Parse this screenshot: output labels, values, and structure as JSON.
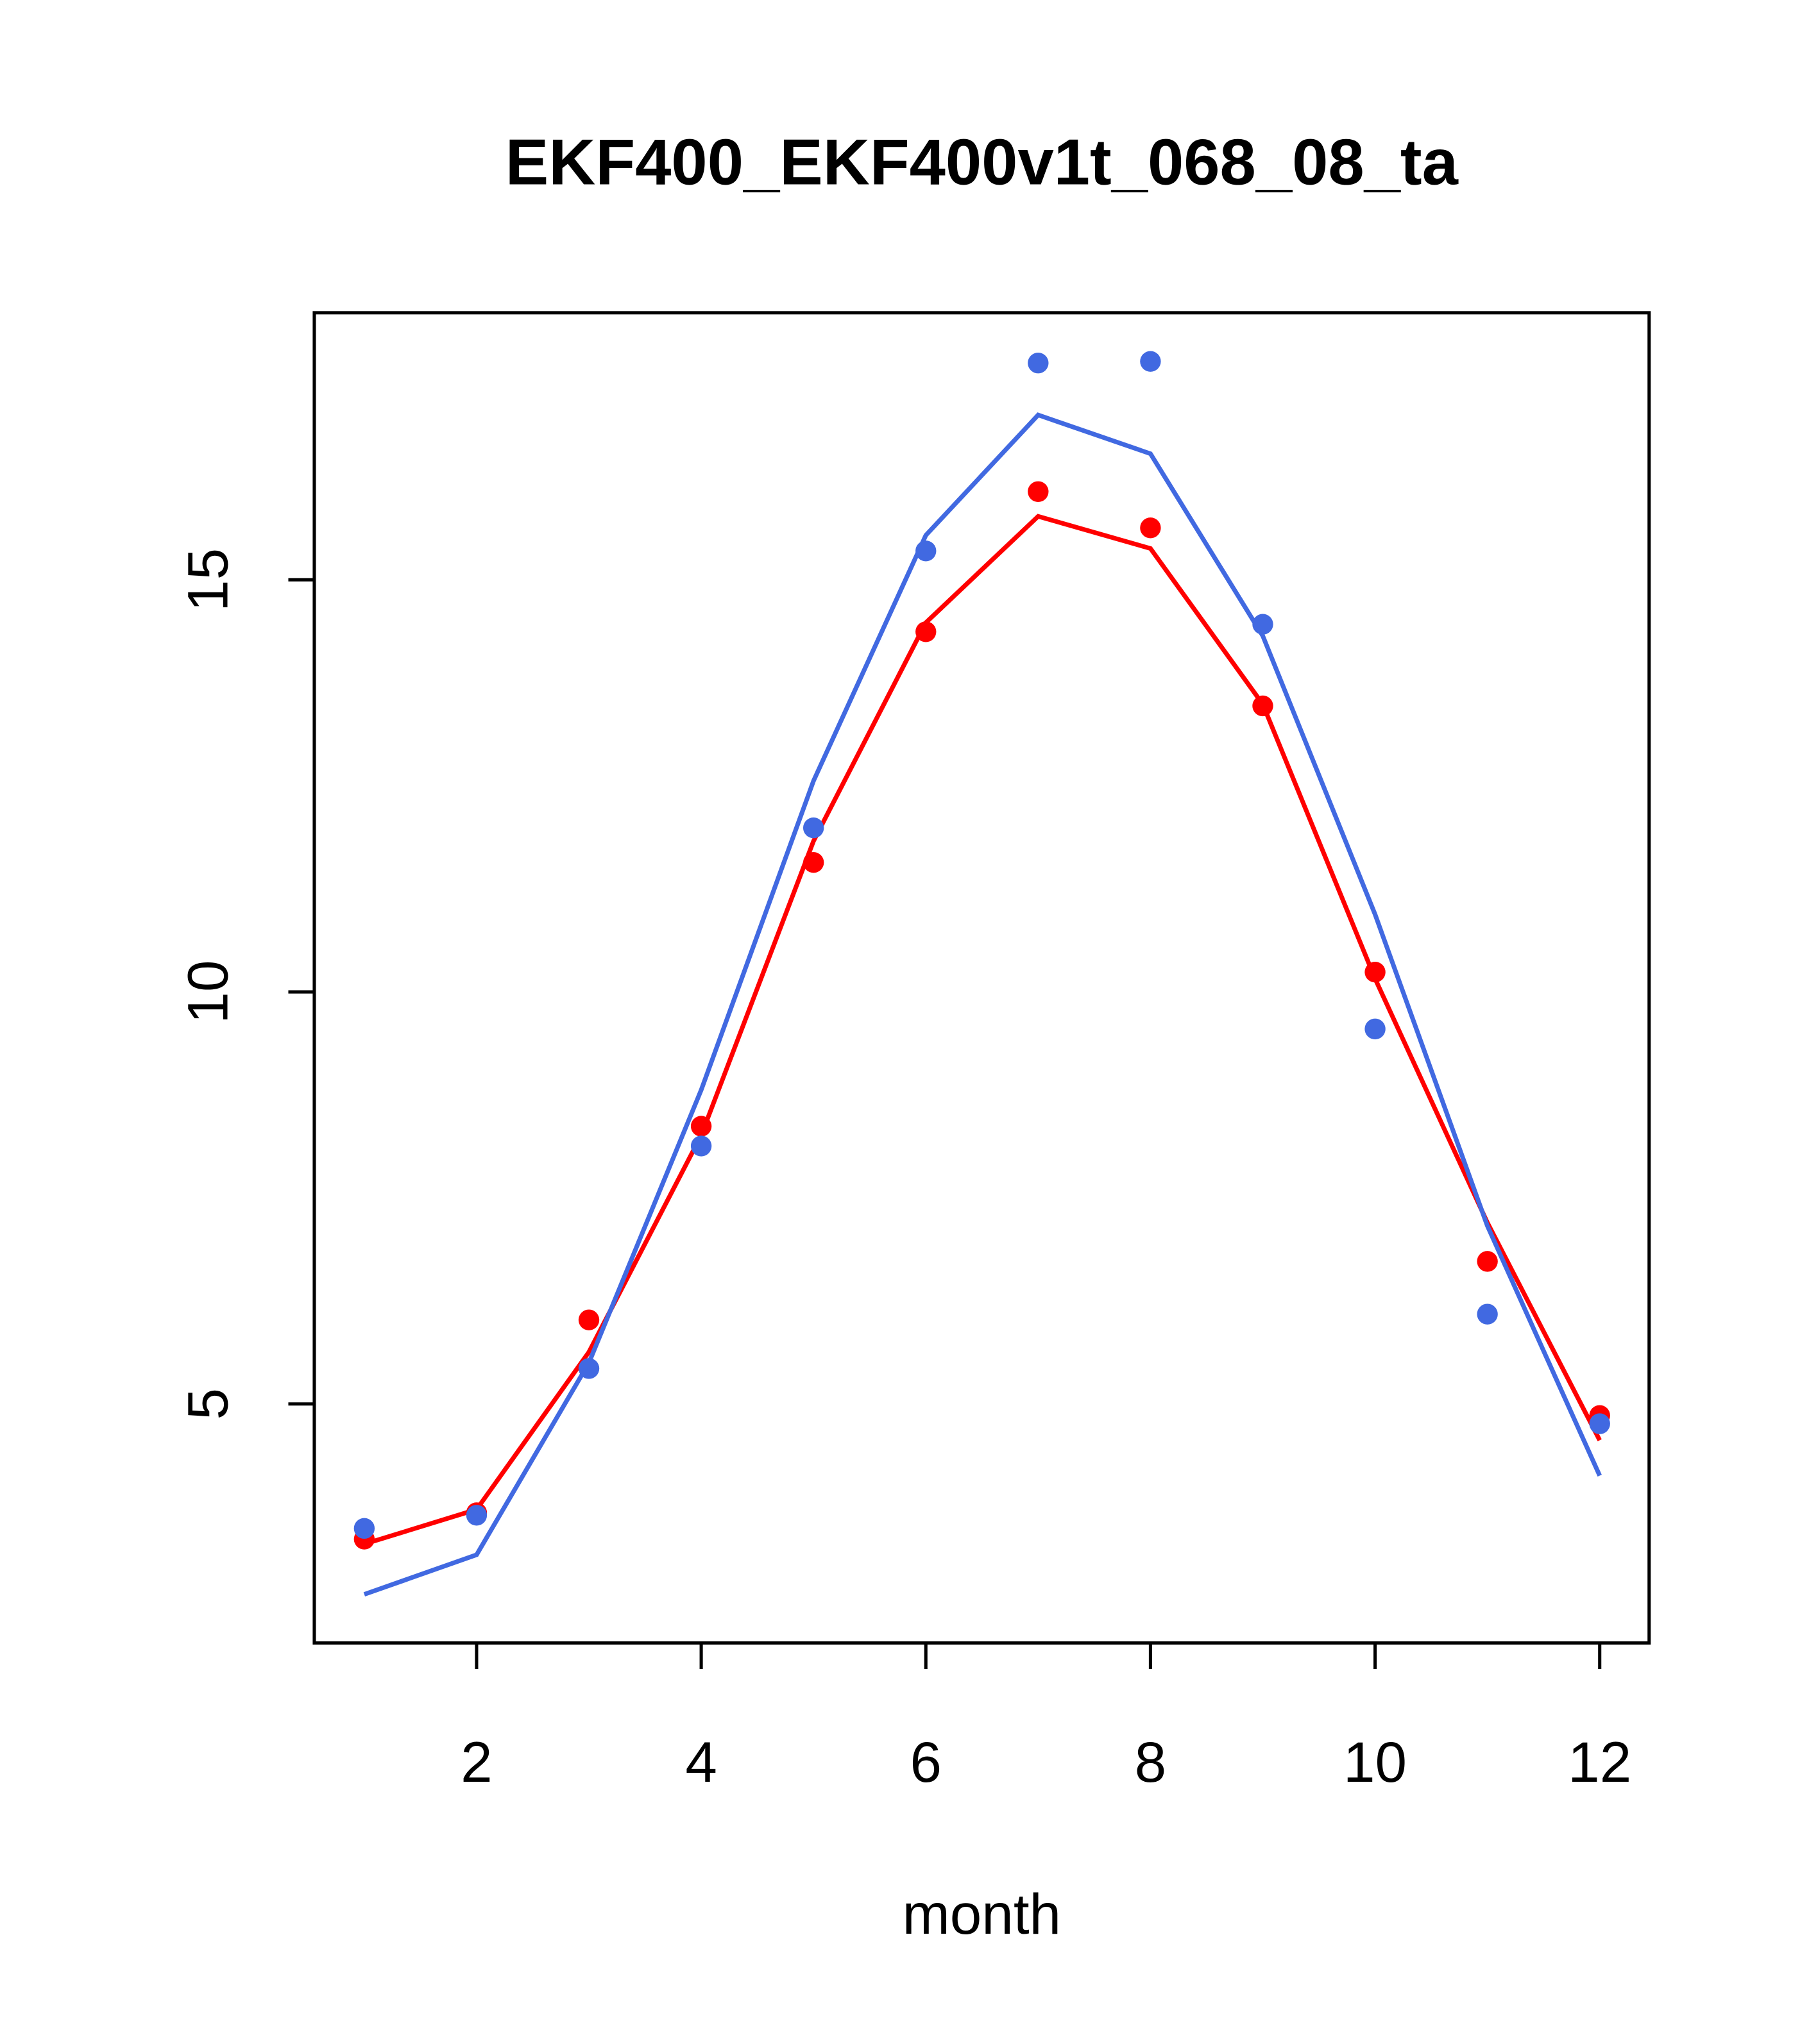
{
  "chart_data": {
    "type": "line",
    "title": "EKF400_EKF400v1t_068_08_ta",
    "xlabel": "month",
    "ylabel": "",
    "xlim": [
      0.555,
      12.44
    ],
    "ylim": [
      2.1,
      18.24
    ],
    "xticks": [
      2,
      4,
      6,
      8,
      10,
      12
    ],
    "yticks": [
      5,
      10,
      15
    ],
    "grid": false,
    "x": [
      1,
      2,
      3,
      4,
      5,
      6,
      7,
      8,
      9,
      10,
      11,
      12
    ],
    "series": [
      {
        "name": "red-points",
        "kind": "points",
        "color": "#FF0000",
        "values": [
          3.36,
          3.68,
          6.02,
          8.37,
          11.57,
          14.37,
          16.07,
          15.63,
          13.47,
          10.24,
          6.73,
          4.86
        ]
      },
      {
        "name": "red-line",
        "kind": "line",
        "color": "#FF0000",
        "values": [
          3.3,
          3.72,
          5.63,
          8.26,
          11.83,
          14.48,
          15.77,
          15.38,
          13.49,
          10.16,
          7.2,
          4.56
        ]
      },
      {
        "name": "blue-points",
        "kind": "points",
        "color": "#4169E1",
        "values": [
          3.49,
          3.65,
          5.43,
          8.13,
          11.99,
          15.35,
          17.63,
          17.65,
          14.46,
          9.55,
          6.09,
          4.76
        ]
      },
      {
        "name": "blue-line",
        "kind": "line",
        "color": "#4169E1",
        "values": [
          2.69,
          3.17,
          5.5,
          8.81,
          12.56,
          15.54,
          17.0,
          16.53,
          14.32,
          10.94,
          7.16,
          4.13
        ]
      }
    ]
  }
}
